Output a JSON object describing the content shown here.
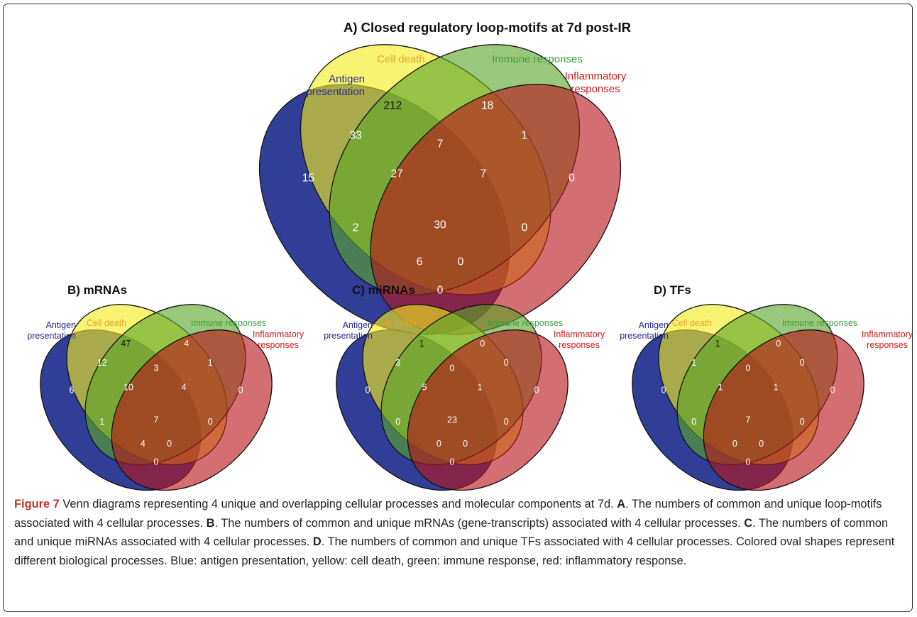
{
  "colors": {
    "antigen": "#1f2f8f",
    "cell_death": "#f4ec1c",
    "immune": "#5aa52a",
    "inflammatory": "#b8151c",
    "caption_accent": "#c0392b"
  },
  "set_labels": {
    "antigen": "Antigen\npresentation",
    "cell_death": "Cell death",
    "immune": "Immune responses",
    "inflammatory": "Inflammatory\nresponses"
  },
  "region_order": [
    "A_only",
    "C_only",
    "I_only",
    "F_only",
    "AC",
    "CI",
    "IF",
    "AI",
    "CF",
    "AF",
    "ACI",
    "CIF",
    "ACF",
    "AIF",
    "ACIF"
  ],
  "panels": [
    {
      "id": "A",
      "title": "A) Closed regulatory loop-motifs at 7d post-IR",
      "values": {
        "A_only": "15",
        "C_only": "212",
        "I_only": "18",
        "F_only": "0",
        "AC": "33",
        "CI": "7",
        "IF": "1",
        "AI": "2",
        "CF": "0",
        "AF": "0",
        "ACI": "27",
        "CIF": "7",
        "ACF": "6",
        "AIF": "0",
        "ACIF": "30"
      }
    },
    {
      "id": "B",
      "title": "B) mRNAs",
      "values": {
        "A_only": "6",
        "C_only": "47",
        "I_only": "4",
        "F_only": "0",
        "AC": "12",
        "CI": "3",
        "IF": "1",
        "AI": "1",
        "CF": "0",
        "AF": "0",
        "ACI": "10",
        "CIF": "4",
        "ACF": "4",
        "AIF": "0",
        "ACIF": "7"
      }
    },
    {
      "id": "C",
      "title": "C) miRNAs",
      "values": {
        "A_only": "0",
        "C_only": "1",
        "I_only": "0",
        "F_only": "0",
        "AC": "3",
        "CI": "0",
        "IF": "0",
        "AI": "0",
        "CF": "0",
        "AF": "0",
        "ACI": "5",
        "CIF": "1",
        "ACF": "0",
        "AIF": "0",
        "ACIF": "23"
      }
    },
    {
      "id": "D",
      "title": "D) TFs",
      "values": {
        "A_only": "0",
        "C_only": "1",
        "I_only": "0",
        "F_only": "0",
        "AC": "1",
        "CI": "0",
        "IF": "0",
        "AI": "0",
        "CF": "0",
        "AF": "0",
        "ACI": "1",
        "CIF": "1",
        "ACF": "0",
        "AIF": "0",
        "ACIF": "7"
      }
    }
  ],
  "caption": {
    "figure_label": "Figure 7",
    "intro": " Venn diagrams representing 4 unique and overlapping cellular processes and molecular components at 7d. ",
    "a_label": "A",
    "a_text": ". The numbers of common and unique loop-motifs associated with 4 cellular processes. ",
    "b_label": "B",
    "b_text": ". The numbers of common and unique mRNAs (gene-transcripts) associated with 4 cellular processes. ",
    "c_label": "C",
    "c_text": ". The numbers of common and unique miRNAs associated with 4 cellular processes. ",
    "d_label": "D",
    "d_text": ". The numbers of common and unique TFs associated with 4 cellular processes. Colored oval shapes represent different biological processes. Blue: antigen presentation, yellow: cell death, green: immune response, red: inflammatory response."
  }
}
